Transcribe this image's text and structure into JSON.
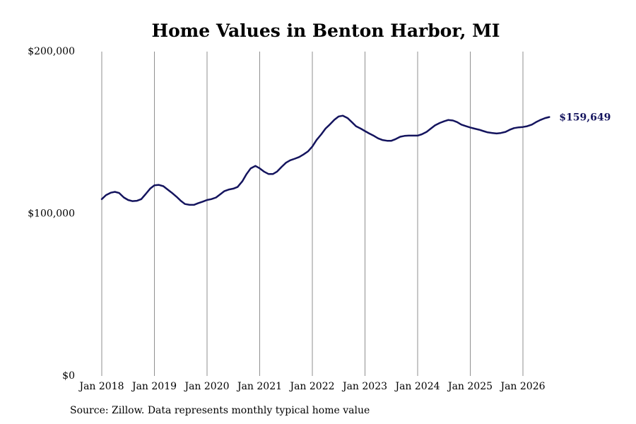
{
  "chart_data": {
    "type": "line",
    "title": "Home Values in Benton Harbor, MI",
    "xlabel": "",
    "ylabel": "",
    "ylim": [
      0,
      200000
    ],
    "y_ticks": [
      "$0",
      "$100,000",
      "$200,000"
    ],
    "y_tick_values": [
      0,
      100000,
      200000
    ],
    "x_ticks": [
      "Jan 2018",
      "Jan 2019",
      "Jan 2020",
      "Jan 2021",
      "Jan 2022",
      "Jan 2023",
      "Jan 2024",
      "Jan 2025",
      "Jan 2026"
    ],
    "x_tick_values": [
      2018,
      2019,
      2020,
      2021,
      2022,
      2023,
      2024,
      2025,
      2026
    ],
    "x_range": [
      2018,
      2026.6
    ],
    "grid": "vertical",
    "line_color": "#14145e",
    "end_label": "$159,649",
    "series": [
      {
        "values": [
          [
            2018.0,
            109000
          ],
          [
            2018.08,
            111500
          ],
          [
            2018.17,
            113000
          ],
          [
            2018.25,
            113500
          ],
          [
            2018.33,
            112800
          ],
          [
            2018.42,
            110000
          ],
          [
            2018.5,
            108500
          ],
          [
            2018.58,
            107800
          ],
          [
            2018.67,
            108000
          ],
          [
            2018.75,
            109000
          ],
          [
            2018.83,
            112000
          ],
          [
            2018.92,
            115500
          ],
          [
            2019.0,
            117500
          ],
          [
            2019.08,
            117800
          ],
          [
            2019.17,
            117000
          ],
          [
            2019.25,
            115000
          ],
          [
            2019.33,
            113000
          ],
          [
            2019.42,
            110500
          ],
          [
            2019.5,
            108000
          ],
          [
            2019.58,
            106000
          ],
          [
            2019.67,
            105500
          ],
          [
            2019.75,
            105500
          ],
          [
            2019.83,
            106500
          ],
          [
            2019.92,
            107500
          ],
          [
            2020.0,
            108500
          ],
          [
            2020.08,
            109000
          ],
          [
            2020.17,
            110000
          ],
          [
            2020.25,
            112000
          ],
          [
            2020.33,
            114000
          ],
          [
            2020.42,
            115000
          ],
          [
            2020.5,
            115500
          ],
          [
            2020.58,
            116500
          ],
          [
            2020.67,
            120000
          ],
          [
            2020.75,
            124500
          ],
          [
            2020.83,
            128000
          ],
          [
            2020.92,
            129500
          ],
          [
            2021.0,
            128000
          ],
          [
            2021.08,
            126000
          ],
          [
            2021.17,
            124500
          ],
          [
            2021.25,
            124500
          ],
          [
            2021.33,
            126000
          ],
          [
            2021.42,
            129000
          ],
          [
            2021.5,
            131500
          ],
          [
            2021.58,
            133000
          ],
          [
            2021.67,
            134000
          ],
          [
            2021.75,
            135000
          ],
          [
            2021.83,
            136500
          ],
          [
            2021.92,
            138500
          ],
          [
            2022.0,
            141500
          ],
          [
            2022.08,
            145500
          ],
          [
            2022.17,
            149000
          ],
          [
            2022.25,
            152500
          ],
          [
            2022.33,
            155000
          ],
          [
            2022.42,
            158000
          ],
          [
            2022.5,
            160000
          ],
          [
            2022.58,
            160500
          ],
          [
            2022.67,
            159000
          ],
          [
            2022.75,
            156500
          ],
          [
            2022.83,
            154000
          ],
          [
            2022.92,
            152500
          ],
          [
            2023.0,
            151000
          ],
          [
            2023.08,
            149500
          ],
          [
            2023.17,
            148000
          ],
          [
            2023.25,
            146500
          ],
          [
            2023.33,
            145500
          ],
          [
            2023.42,
            145000
          ],
          [
            2023.5,
            145000
          ],
          [
            2023.58,
            146000
          ],
          [
            2023.67,
            147500
          ],
          [
            2023.75,
            148000
          ],
          [
            2023.83,
            148200
          ],
          [
            2023.92,
            148200
          ],
          [
            2024.0,
            148200
          ],
          [
            2024.08,
            149000
          ],
          [
            2024.17,
            150500
          ],
          [
            2024.25,
            152500
          ],
          [
            2024.33,
            154500
          ],
          [
            2024.42,
            156000
          ],
          [
            2024.5,
            157000
          ],
          [
            2024.58,
            157800
          ],
          [
            2024.67,
            157500
          ],
          [
            2024.75,
            156500
          ],
          [
            2024.83,
            155000
          ],
          [
            2024.92,
            154000
          ],
          [
            2025.0,
            153200
          ],
          [
            2025.08,
            152500
          ],
          [
            2025.17,
            151800
          ],
          [
            2025.25,
            151000
          ],
          [
            2025.33,
            150200
          ],
          [
            2025.42,
            149800
          ],
          [
            2025.5,
            149500
          ],
          [
            2025.58,
            149800
          ],
          [
            2025.67,
            150500
          ],
          [
            2025.75,
            151800
          ],
          [
            2025.83,
            152800
          ],
          [
            2025.92,
            153300
          ],
          [
            2026.0,
            153500
          ],
          [
            2026.08,
            154000
          ],
          [
            2026.17,
            155000
          ],
          [
            2026.25,
            156500
          ],
          [
            2026.33,
            157800
          ],
          [
            2026.42,
            159000
          ],
          [
            2026.5,
            159649
          ]
        ]
      }
    ]
  },
  "source_text": "Source: Zillow. Data represents monthly typical home value"
}
